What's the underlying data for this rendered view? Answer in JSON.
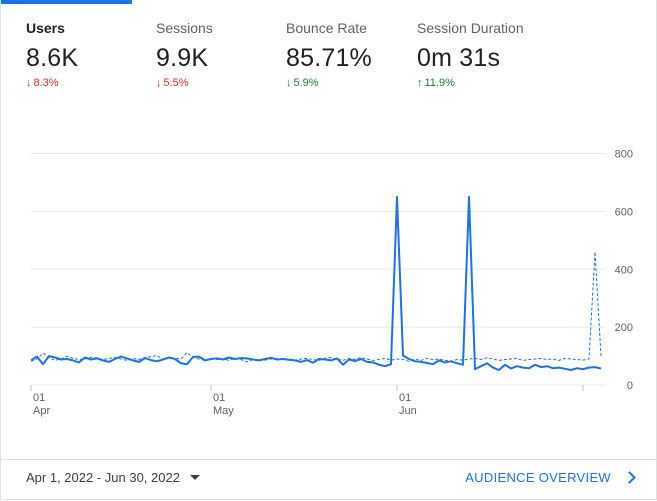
{
  "metrics": [
    {
      "label": "Users",
      "value": "8.6K",
      "delta": "8.3%",
      "direction": "down"
    },
    {
      "label": "Sessions",
      "value": "9.9K",
      "delta": "5.5%",
      "direction": "down"
    },
    {
      "label": "Bounce Rate",
      "value": "85.71%",
      "delta": "5.9%",
      "direction": "down-good"
    },
    {
      "label": "Session Duration",
      "value": "0m 31s",
      "delta": "11.9%",
      "direction": "up"
    }
  ],
  "colors": {
    "accent": "#1a73e8",
    "negative": "#d93025",
    "positive": "#188038"
  },
  "footer": {
    "date_range": "Apr 1, 2022 - Jun 30, 2022",
    "overview_link": "AUDIENCE OVERVIEW"
  },
  "chart_data": {
    "type": "line",
    "ylim": [
      0,
      800
    ],
    "y_ticks": [
      "0",
      "200",
      "400",
      "600",
      "800"
    ],
    "x_ticks": [
      {
        "day": 1,
        "label": "01\nApr"
      },
      {
        "day": 31,
        "label": "01\nMay"
      },
      {
        "day": 62,
        "label": "01\nJun"
      },
      {
        "day": 93,
        "label": ""
      }
    ],
    "series": [
      {
        "name": "current",
        "style": "solid",
        "values": [
          85,
          98,
          72,
          100,
          95,
          88,
          90,
          85,
          78,
          95,
          88,
          92,
          85,
          80,
          90,
          98,
          92,
          85,
          80,
          93,
          86,
          82,
          88,
          95,
          90,
          75,
          72,
          97,
          98,
          85,
          90,
          92,
          88,
          95,
          90,
          93,
          92,
          88,
          85,
          90,
          94,
          88,
          90,
          87,
          85,
          80,
          86,
          77,
          90,
          88,
          85,
          92,
          70,
          88,
          83,
          90,
          80,
          78,
          70,
          65,
          72,
          650,
          102,
          90,
          82,
          80,
          76,
          72,
          85,
          78,
          82,
          75,
          70,
          650,
          55,
          65,
          75,
          60,
          52,
          70,
          57,
          65,
          60,
          58,
          70,
          62,
          65,
          58,
          60,
          56,
          52,
          58,
          55,
          60,
          62,
          57
        ]
      },
      {
        "name": "previous",
        "style": "dashed",
        "values": [
          82,
          90,
          110,
          95,
          85,
          90,
          100,
          92,
          88,
          90,
          96,
          94,
          88,
          92,
          95,
          90,
          85,
          92,
          88,
          95,
          98,
          102,
          88,
          94,
          92,
          90,
          112,
          95,
          90,
          85,
          92,
          88,
          90,
          85,
          92,
          88,
          80,
          88,
          85,
          86,
          90,
          92,
          88,
          85,
          86,
          90,
          92,
          88,
          85,
          92,
          95,
          90,
          85,
          92,
          88,
          95,
          90,
          85,
          88,
          92,
          86,
          90,
          88,
          82,
          90,
          85,
          92,
          88,
          90,
          85,
          82,
          88,
          86,
          90,
          92,
          88,
          94,
          90,
          85,
          88,
          90,
          92,
          85,
          88,
          90,
          92,
          88,
          90,
          85,
          92,
          90,
          88,
          86,
          90,
          460,
          100
        ]
      }
    ]
  }
}
